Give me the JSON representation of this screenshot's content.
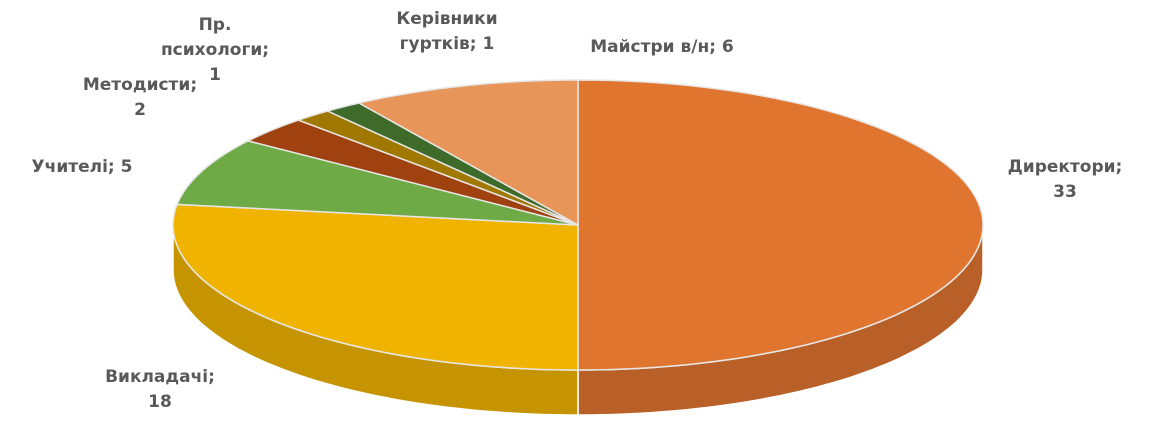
{
  "chart_data": {
    "type": "pie3d",
    "categories": [
      "Директори",
      "Викладачі",
      "Учителі",
      "Методисти",
      "Пр. психологи",
      "Керівники гуртків",
      "Майстри в/н"
    ],
    "values": [
      33,
      18,
      5,
      2,
      1,
      1,
      6
    ],
    "value_labels": [
      "Директори; 33",
      "Викладачі; 18",
      "Учителі; 5",
      "Методисти; 2",
      "Пр. психологи; 1",
      "Керівники гуртків; 1",
      "Майстри в/н; 6"
    ],
    "colors": [
      "#e07530",
      "#f0b400",
      "#6eaa45",
      "#a0420f",
      "#a07800",
      "#3f6b2a",
      "#e8955a"
    ]
  }
}
